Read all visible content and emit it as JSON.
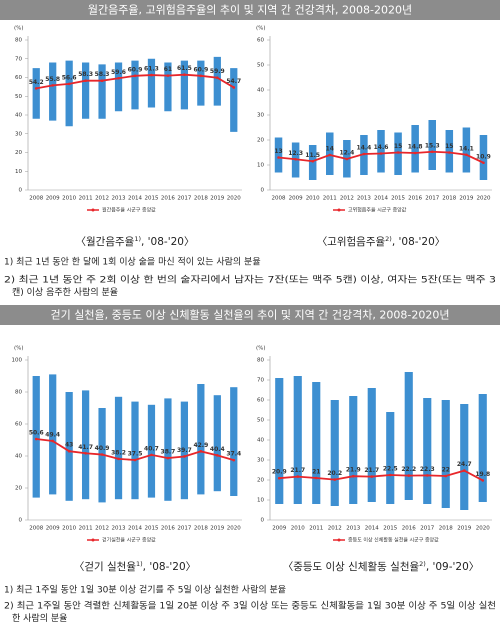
{
  "sections": [
    {
      "header": "월간음주율, 고위험음주율의 추이 및 지역 간 건강격차, 2008-2020년",
      "notes": [
        [
          "1) 최근 1년 동안 한 달에 1회 이상 술을 마신 적이 있는 사람의 분율"
        ],
        [
          "2) 최근 1년 동안 주 2회 이상 한 번의 술자리에서 남자는 7잔(또는 맥주 5캔) 이상, 여자는 5잔(또는 맥주 3",
          "캔) 이상 음주한 사람의 분율"
        ]
      ]
    },
    {
      "header": "걷기 실천율, 중등도 이상 신체활동 실천율의 추이 및 지역 간 건강격차, 2008-2020년",
      "notes": [
        [
          "1) 최근 1주일 동안 1일 30분 이상 걷기를 주 5일 이상 실천한 사람의 분율"
        ],
        [
          "2) 최근 1주일 동안 격렬한 신체활동을 1일 20분 이상 주 3일 이상 또는 중등도 신체활동을 1일 30분 이상 주 5일 이상 실천",
          "한 사람의 분율"
        ]
      ]
    }
  ],
  "chart_data": [
    {
      "type": "range-line",
      "ylabel": "(%)",
      "categories": [
        "2008",
        "2009",
        "2010",
        "2011",
        "2012",
        "2013",
        "2014",
        "2015",
        "2016",
        "2017",
        "2018",
        "2019",
        "2020"
      ],
      "ranges": {
        "color": "#3d8fd1",
        "low": [
          38,
          37,
          34,
          38,
          38,
          42,
          43,
          44,
          42,
          43,
          45,
          45,
          31
        ],
        "high": [
          65,
          68,
          69,
          68,
          67,
          68,
          69,
          70,
          68,
          69,
          69,
          71,
          65
        ]
      },
      "series": [
        {
          "name": "월간음주율 시군구 중앙값",
          "color": "#e8262a",
          "values": [
            54.2,
            55.8,
            56.6,
            58.3,
            58.3,
            59.6,
            60.9,
            61.3,
            61.0,
            61.5,
            60.9,
            59.9,
            54.7
          ]
        }
      ],
      "ylim": [
        0,
        80
      ],
      "yticks": [
        0,
        10,
        20,
        30,
        40,
        50,
        60,
        70,
        80
      ],
      "caption": {
        "main": "〈월간음주율",
        "sup": "1)",
        "tail": ", '08-'20〉"
      }
    },
    {
      "type": "range-line",
      "ylabel": "(%)",
      "categories": [
        "2008",
        "2009",
        "2010",
        "2011",
        "2012",
        "2013",
        "2014",
        "2015",
        "2016",
        "2017",
        "2018",
        "2019",
        "2020"
      ],
      "ranges": {
        "color": "#3d8fd1",
        "low": [
          7,
          5,
          4,
          6,
          5,
          6,
          7,
          6,
          7,
          8,
          7,
          7,
          4
        ],
        "high": [
          21,
          19,
          18,
          23,
          20,
          22,
          24,
          23,
          26,
          28,
          24,
          25,
          22
        ]
      },
      "series": [
        {
          "name": "고위험음주율 시군구 중앙값",
          "color": "#e8262a",
          "values": [
            13.0,
            12.3,
            11.5,
            14.0,
            12.4,
            14.4,
            14.6,
            15.0,
            14.8,
            15.3,
            15.0,
            14.1,
            10.9
          ]
        }
      ],
      "ylim": [
        0,
        60
      ],
      "yticks": [
        0,
        10,
        20,
        30,
        40,
        50,
        60
      ],
      "caption": {
        "main": "〈고위험음주율",
        "sup": "2)",
        "tail": ", '08-'20〉"
      }
    },
    {
      "type": "range-line",
      "ylabel": "(%)",
      "categories": [
        "2008",
        "2009",
        "2010",
        "2011",
        "2012",
        "2013",
        "2014",
        "2015",
        "2016",
        "2017",
        "2018",
        "2019",
        "2020"
      ],
      "ranges": {
        "color": "#3d8fd1",
        "low": [
          14,
          16,
          12,
          13,
          11,
          13,
          13,
          14,
          12,
          13,
          16,
          18,
          15
        ],
        "high": [
          90,
          91,
          80,
          81,
          70,
          77,
          74,
          72,
          76,
          74,
          85,
          78,
          83
        ]
      },
      "series": [
        {
          "name": "걷기실천율 시군구 중앙값",
          "color": "#e8262a",
          "values": [
            50.6,
            49.4,
            43.0,
            41.7,
            40.9,
            38.2,
            37.5,
            40.7,
            38.7,
            39.7,
            42.9,
            40.4,
            37.4
          ]
        }
      ],
      "ylim": [
        0,
        100
      ],
      "yticks": [
        0,
        20,
        40,
        60,
        80,
        100
      ],
      "caption": {
        "main": "〈걷기 실천율",
        "sup": "1)",
        "tail": ", '08-'20〉"
      }
    },
    {
      "type": "range-line",
      "ylabel": "(%)",
      "categories": [
        "2009",
        "2010",
        "2011",
        "2012",
        "2013",
        "2014",
        "2015",
        "2016",
        "2017",
        "2018",
        "2019",
        "2020"
      ],
      "ranges": {
        "color": "#3d8fd1",
        "low": [
          8,
          8,
          8,
          7,
          8,
          9,
          8,
          10,
          8,
          6,
          5,
          9
        ],
        "high": [
          71,
          72,
          69,
          60,
          62,
          66,
          54,
          74,
          61,
          60,
          58,
          63
        ]
      },
      "series": [
        {
          "name": "중등도 이상 신체활동 실천율 시군구 중앙값",
          "color": "#e8262a",
          "values": [
            20.9,
            21.7,
            21.0,
            20.2,
            21.9,
            21.7,
            22.5,
            22.2,
            22.3,
            22.0,
            24.7,
            19.8
          ]
        }
      ],
      "ylim": [
        0,
        80
      ],
      "yticks": [
        0,
        10,
        20,
        30,
        40,
        50,
        60,
        70,
        80
      ],
      "caption": {
        "main": "〈중등도 이상 신체활동 실천율",
        "sup": "2)",
        "tail": ", '09-'20〉"
      }
    }
  ]
}
